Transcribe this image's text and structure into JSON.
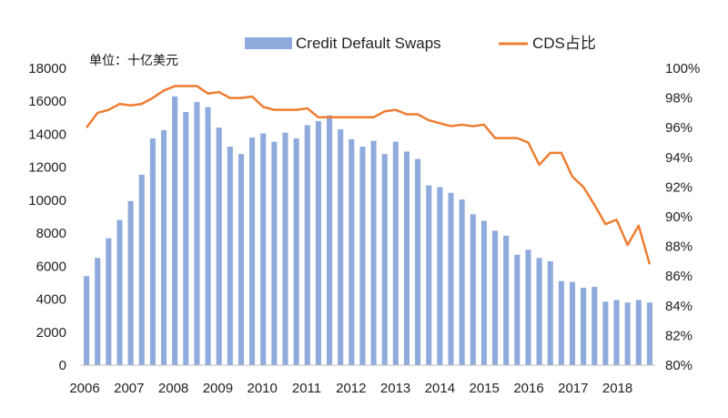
{
  "unit_label": "单位：十亿美元",
  "chart_data": {
    "type": "bar+line",
    "x_ticks": [
      "2006",
      "2007",
      "2008",
      "2009",
      "2010",
      "2011",
      "2012",
      "2013",
      "2014",
      "2015",
      "2016",
      "2017",
      "2018"
    ],
    "y_left": {
      "min": 0,
      "max": 18000,
      "step": 2000,
      "ticks": [
        "0",
        "2000",
        "4000",
        "6000",
        "8000",
        "10000",
        "12000",
        "14000",
        "16000",
        "18000"
      ]
    },
    "y_right": {
      "min": 80,
      "max": 100,
      "step": 2,
      "ticks": [
        "80%",
        "82%",
        "84%",
        "86%",
        "88%",
        "90%",
        "92%",
        "94%",
        "96%",
        "98%",
        "100%"
      ]
    },
    "legend": "top",
    "grid": false,
    "series": [
      {
        "name": "Credit Default Swaps",
        "type": "bar",
        "axis": "left",
        "color": "#8faadc",
        "values": [
          5400,
          6500,
          7700,
          8800,
          9950,
          11550,
          13750,
          14250,
          16300,
          15350,
          15950,
          15650,
          14400,
          13250,
          12800,
          13800,
          14050,
          13550,
          14100,
          13750,
          14550,
          14800,
          15150,
          14300,
          13700,
          13250,
          13600,
          12800,
          13550,
          12950,
          12500,
          10900,
          10800,
          10450,
          10050,
          9150,
          8750,
          8150,
          7850,
          6700,
          7000,
          6500,
          6300,
          5100,
          5050,
          4700,
          4750,
          3850,
          3950,
          3800,
          3950,
          3800
        ]
      },
      {
        "name": "CDS占比",
        "type": "line",
        "axis": "right",
        "color": "#ed7d31",
        "values": [
          96.0,
          97.0,
          97.2,
          97.6,
          97.5,
          97.6,
          98.0,
          98.5,
          98.8,
          98.8,
          98.8,
          98.3,
          98.4,
          98.0,
          98.0,
          98.1,
          97.4,
          97.2,
          97.2,
          97.2,
          97.3,
          96.7,
          96.7,
          96.7,
          96.7,
          96.7,
          96.7,
          97.1,
          97.2,
          96.9,
          96.9,
          96.5,
          96.3,
          96.1,
          96.2,
          96.1,
          96.2,
          95.3,
          95.3,
          95.3,
          95.0,
          93.5,
          94.3,
          94.3,
          92.7,
          92.0,
          90.8,
          89.5,
          89.8,
          88.1,
          89.4,
          86.8
        ]
      }
    ]
  }
}
